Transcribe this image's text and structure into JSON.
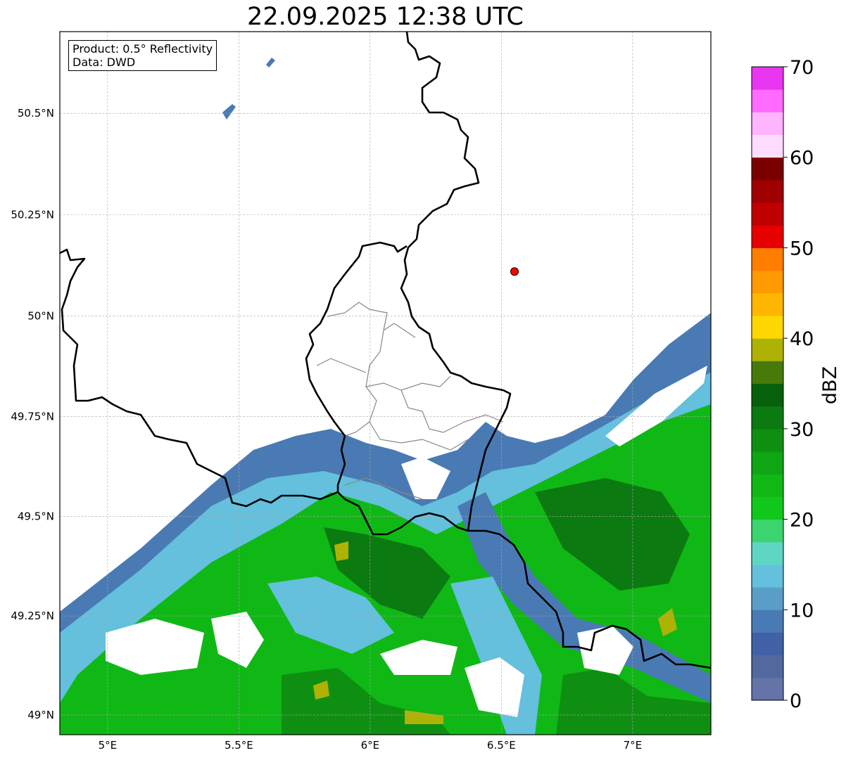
{
  "title": "22.09.2025 12:38 UTC",
  "info": {
    "product": "Product: 0.5° Reflectivity",
    "source": "Data: DWD"
  },
  "map": {
    "extent": {
      "lon": [
        4.818,
        7.298
      ],
      "lat": [
        48.95,
        50.7
      ]
    },
    "lon_ticks": [
      {
        "value": 5,
        "label": "5°E"
      },
      {
        "value": 5.5,
        "label": "5.5°E"
      },
      {
        "value": 6,
        "label": "6°E"
      },
      {
        "value": 6.5,
        "label": "6.5°E"
      },
      {
        "value": 7,
        "label": "7°E"
      }
    ],
    "lat_ticks": [
      {
        "value": 50.5,
        "label": "50.5°N"
      },
      {
        "value": 50.25,
        "label": "50.25°N"
      },
      {
        "value": 50,
        "label": "50°N"
      },
      {
        "value": 49.75,
        "label": "49.75°N"
      },
      {
        "value": 49.5,
        "label": "49.5°N"
      },
      {
        "value": 49.25,
        "label": "49.25°N"
      },
      {
        "value": 49,
        "label": "49°N"
      }
    ],
    "marker": {
      "lon": 6.55,
      "lat": 50.11,
      "color": "#ff0000"
    }
  },
  "colorbar": {
    "label": "dBZ",
    "min": 0,
    "max": 70,
    "step": 2.5,
    "ticks": [
      {
        "value": 0,
        "label": "0"
      },
      {
        "value": 10,
        "label": "10"
      },
      {
        "value": 20,
        "label": "20"
      },
      {
        "value": 30,
        "label": "30"
      },
      {
        "value": 40,
        "label": "40"
      },
      {
        "value": 50,
        "label": "50"
      },
      {
        "value": 60,
        "label": "60"
      },
      {
        "value": 70,
        "label": "70"
      }
    ],
    "colors": [
      "#6473a8",
      "#52689f",
      "#4260a6",
      "#4a7ab3",
      "#5a9ec8",
      "#64c0dc",
      "#5fd6c4",
      "#3cd46e",
      "#0fc81a",
      "#10b816",
      "#0fa514",
      "#0e8f12",
      "#0b7a10",
      "#07600c",
      "#467a0a",
      "#aeb205",
      "#ffd700",
      "#ffb600",
      "#ff9a00",
      "#ff7d00",
      "#e60000",
      "#c00000",
      "#a00000",
      "#7a0000",
      "#ffdcff",
      "#ffb4ff",
      "#ff6aff",
      "#e936f0"
    ]
  }
}
